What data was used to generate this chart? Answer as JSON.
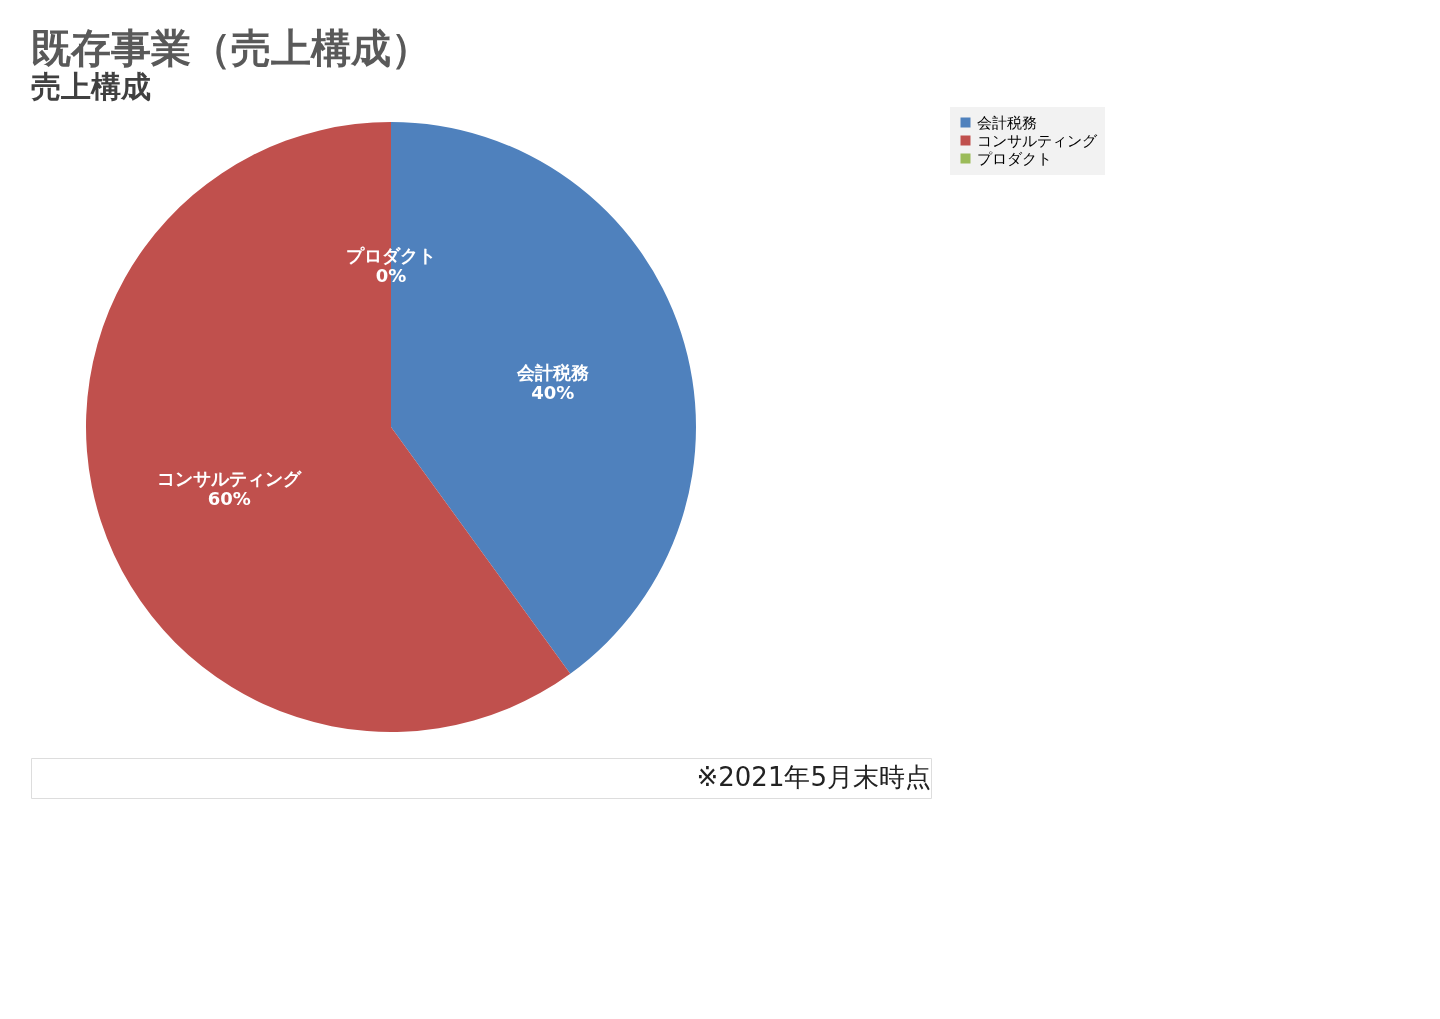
{
  "chart_data": {
    "type": "pie",
    "title": "既存事業（売上構成）",
    "subtitle": "売上構成",
    "categories": [
      "会計税務",
      "コンサルティング",
      "プロダクト"
    ],
    "values": [
      40,
      60,
      0
    ],
    "colors": [
      "#4f81bd",
      "#c0504d",
      "#9bbb59"
    ],
    "value_labels": [
      "40%",
      "60%",
      "0%"
    ],
    "legend": "right",
    "annotations": [
      "※2021年5月末時点"
    ]
  }
}
